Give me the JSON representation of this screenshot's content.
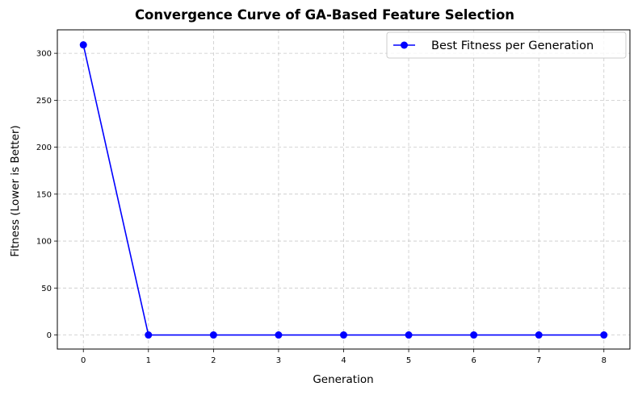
{
  "chart_data": {
    "type": "line",
    "title": "Convergence Curve of GA-Based Feature Selection",
    "xlabel": "Generation",
    "ylabel": "Fitness (Lower is Better)",
    "xlim": [
      -0.4,
      8.4
    ],
    "ylim": [
      -15,
      325
    ],
    "xticks": [
      0,
      1,
      2,
      3,
      4,
      5,
      6,
      7,
      8
    ],
    "yticks": [
      0,
      50,
      100,
      150,
      200,
      250,
      300
    ],
    "grid": true,
    "legend_position": "top-right",
    "series": [
      {
        "name": "Best Fitness per Generation",
        "color": "#0000ff",
        "marker": "circle",
        "x": [
          0,
          1,
          2,
          3,
          4,
          5,
          6,
          7,
          8
        ],
        "y": [
          309,
          0,
          0,
          0,
          0,
          0,
          0,
          0,
          0
        ]
      }
    ]
  }
}
